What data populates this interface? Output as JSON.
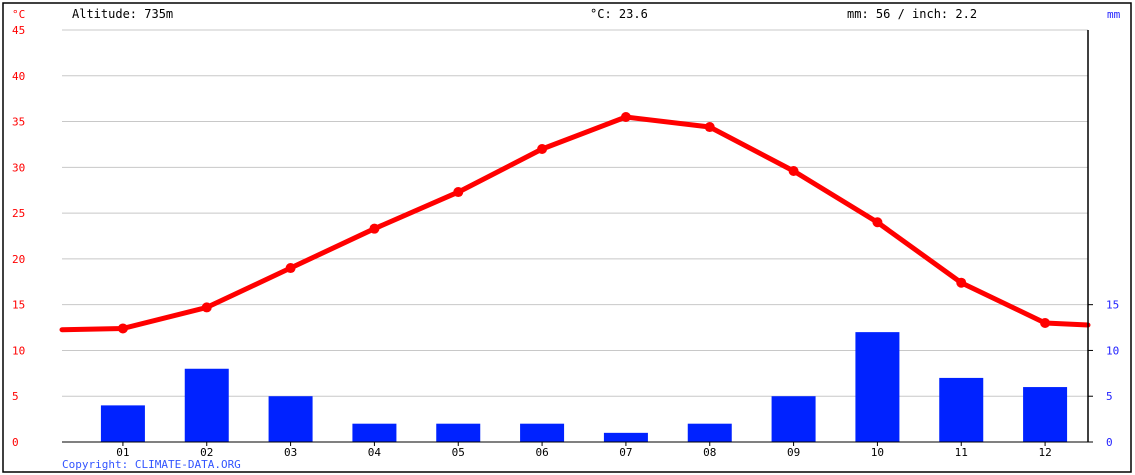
{
  "header": {
    "left_unit": "°C",
    "altitude": "Altitude: 735m",
    "avg_temp": "°C: 23.6",
    "precip": "mm: 56 / inch: 2.2",
    "right_unit": "mm"
  },
  "copyright": "Copyright: CLIMATE-DATA.ORG",
  "colors": {
    "temperature": "#ff0000",
    "precipitation": "#0022ff",
    "grid": "#c8c8c8"
  },
  "chart_data": {
    "type": "bar",
    "categories": [
      "01",
      "02",
      "03",
      "04",
      "05",
      "06",
      "07",
      "08",
      "09",
      "10",
      "11",
      "12"
    ],
    "series": [
      {
        "type": "line",
        "axis": "left",
        "values": [
          12.4,
          14.7,
          19.0,
          23.3,
          27.3,
          32.0,
          35.5,
          34.4,
          29.6,
          24.0,
          17.4,
          13.0
        ]
      },
      {
        "type": "bar",
        "axis": "right",
        "values": [
          4,
          8,
          5,
          2,
          2,
          2,
          1,
          2,
          5,
          12,
          7,
          6
        ]
      }
    ],
    "left_axis": {
      "unit": "°C",
      "ylim": [
        0,
        45
      ],
      "ticks": [
        "0",
        "5",
        "10",
        "15",
        "20",
        "25",
        "30",
        "35",
        "40",
        "45"
      ]
    },
    "right_axis": {
      "unit": "mm",
      "ylim": [
        0,
        45
      ],
      "ticks": [
        "0",
        "5",
        "10",
        "15"
      ]
    },
    "grid": true,
    "legend": "none"
  }
}
